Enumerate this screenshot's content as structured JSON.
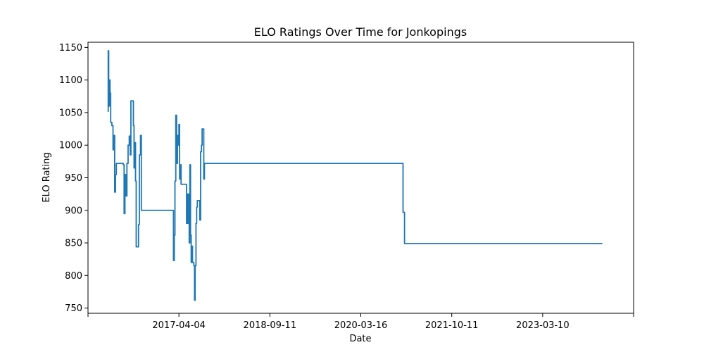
{
  "chart_data": {
    "type": "line",
    "title": "ELO Ratings Over Time for Jonkopings",
    "xlabel": "Date",
    "ylabel": "ELO Rating",
    "grid": false,
    "x_ticks": [
      "",
      "2017-04-04",
      "2018-09-11",
      "2020-03-16",
      "2021-10-11",
      "2023-03-10",
      ""
    ],
    "y_ticks": [
      750,
      800,
      850,
      900,
      950,
      1000,
      1050,
      1100,
      1150
    ],
    "ylim": [
      742,
      1158
    ],
    "xlim": [
      "2015-10-20",
      "2024-10-26"
    ],
    "series": [
      {
        "color": "#1f77b4",
        "points": [
          [
            "2016-02-15",
            1052
          ],
          [
            "2016-02-19",
            1145
          ],
          [
            "2016-02-22",
            1060
          ],
          [
            "2016-02-26",
            1100
          ],
          [
            "2016-03-01",
            1080
          ],
          [
            "2016-03-05",
            1035
          ],
          [
            "2016-03-12",
            1030
          ],
          [
            "2016-03-19",
            993
          ],
          [
            "2016-03-24",
            1015
          ],
          [
            "2016-03-29",
            928
          ],
          [
            "2016-04-03",
            955
          ],
          [
            "2016-04-08",
            972
          ],
          [
            "2016-04-30",
            972
          ],
          [
            "2016-05-20",
            970
          ],
          [
            "2016-05-25",
            895
          ],
          [
            "2016-05-30",
            955
          ],
          [
            "2016-06-04",
            922
          ],
          [
            "2016-06-11",
            972
          ],
          [
            "2016-06-18",
            1000
          ],
          [
            "2016-06-25",
            1014
          ],
          [
            "2016-07-01",
            985
          ],
          [
            "2016-07-05",
            1068
          ],
          [
            "2016-07-20",
            1030
          ],
          [
            "2016-07-24",
            965
          ],
          [
            "2016-07-28",
            1004
          ],
          [
            "2016-08-02",
            945
          ],
          [
            "2016-08-06",
            844
          ],
          [
            "2016-08-20",
            878
          ],
          [
            "2016-08-25",
            985
          ],
          [
            "2016-09-01",
            1015
          ],
          [
            "2016-09-06",
            900
          ],
          [
            "2016-10-01",
            900
          ],
          [
            "2017-01-01",
            900
          ],
          [
            "2017-03-14",
            900
          ],
          [
            "2017-03-19",
            823
          ],
          [
            "2017-03-24",
            862
          ],
          [
            "2017-03-28",
            945
          ],
          [
            "2017-04-02",
            1046
          ],
          [
            "2017-04-07",
            972
          ],
          [
            "2017-04-12",
            1015
          ],
          [
            "2017-04-17",
            1000
          ],
          [
            "2017-04-21",
            1032
          ],
          [
            "2017-04-25",
            948
          ],
          [
            "2017-04-29",
            970
          ],
          [
            "2017-05-04",
            940
          ],
          [
            "2017-05-10",
            940
          ],
          [
            "2017-06-01",
            940
          ],
          [
            "2017-06-06",
            880
          ],
          [
            "2017-06-10",
            925
          ],
          [
            "2017-06-14",
            880
          ],
          [
            "2017-06-18",
            925
          ],
          [
            "2017-06-22",
            850
          ],
          [
            "2017-06-26",
            970
          ],
          [
            "2017-06-30",
            862
          ],
          [
            "2017-07-04",
            820
          ],
          [
            "2017-07-08",
            845
          ],
          [
            "2017-07-12",
            820
          ],
          [
            "2017-07-20",
            815
          ],
          [
            "2017-07-24",
            762
          ],
          [
            "2017-07-28",
            815
          ],
          [
            "2017-08-02",
            880
          ],
          [
            "2017-08-06",
            905
          ],
          [
            "2017-08-10",
            915
          ],
          [
            "2017-08-20",
            915
          ],
          [
            "2017-08-25",
            885
          ],
          [
            "2017-08-30",
            990
          ],
          [
            "2017-09-04",
            1000
          ],
          [
            "2017-09-08",
            1025
          ],
          [
            "2017-09-14",
            1025
          ],
          [
            "2017-09-18",
            948
          ],
          [
            "2017-09-22",
            972
          ],
          [
            "2018-06-01",
            972
          ],
          [
            "2019-06-01",
            972
          ],
          [
            "2020-06-01",
            972
          ],
          [
            "2020-12-31",
            972
          ],
          [
            "2021-01-03",
            897
          ],
          [
            "2021-01-12",
            849
          ],
          [
            "2022-06-01",
            849
          ],
          [
            "2024-03-01",
            849
          ],
          [
            "2024-04-20",
            849
          ]
        ]
      }
    ]
  }
}
